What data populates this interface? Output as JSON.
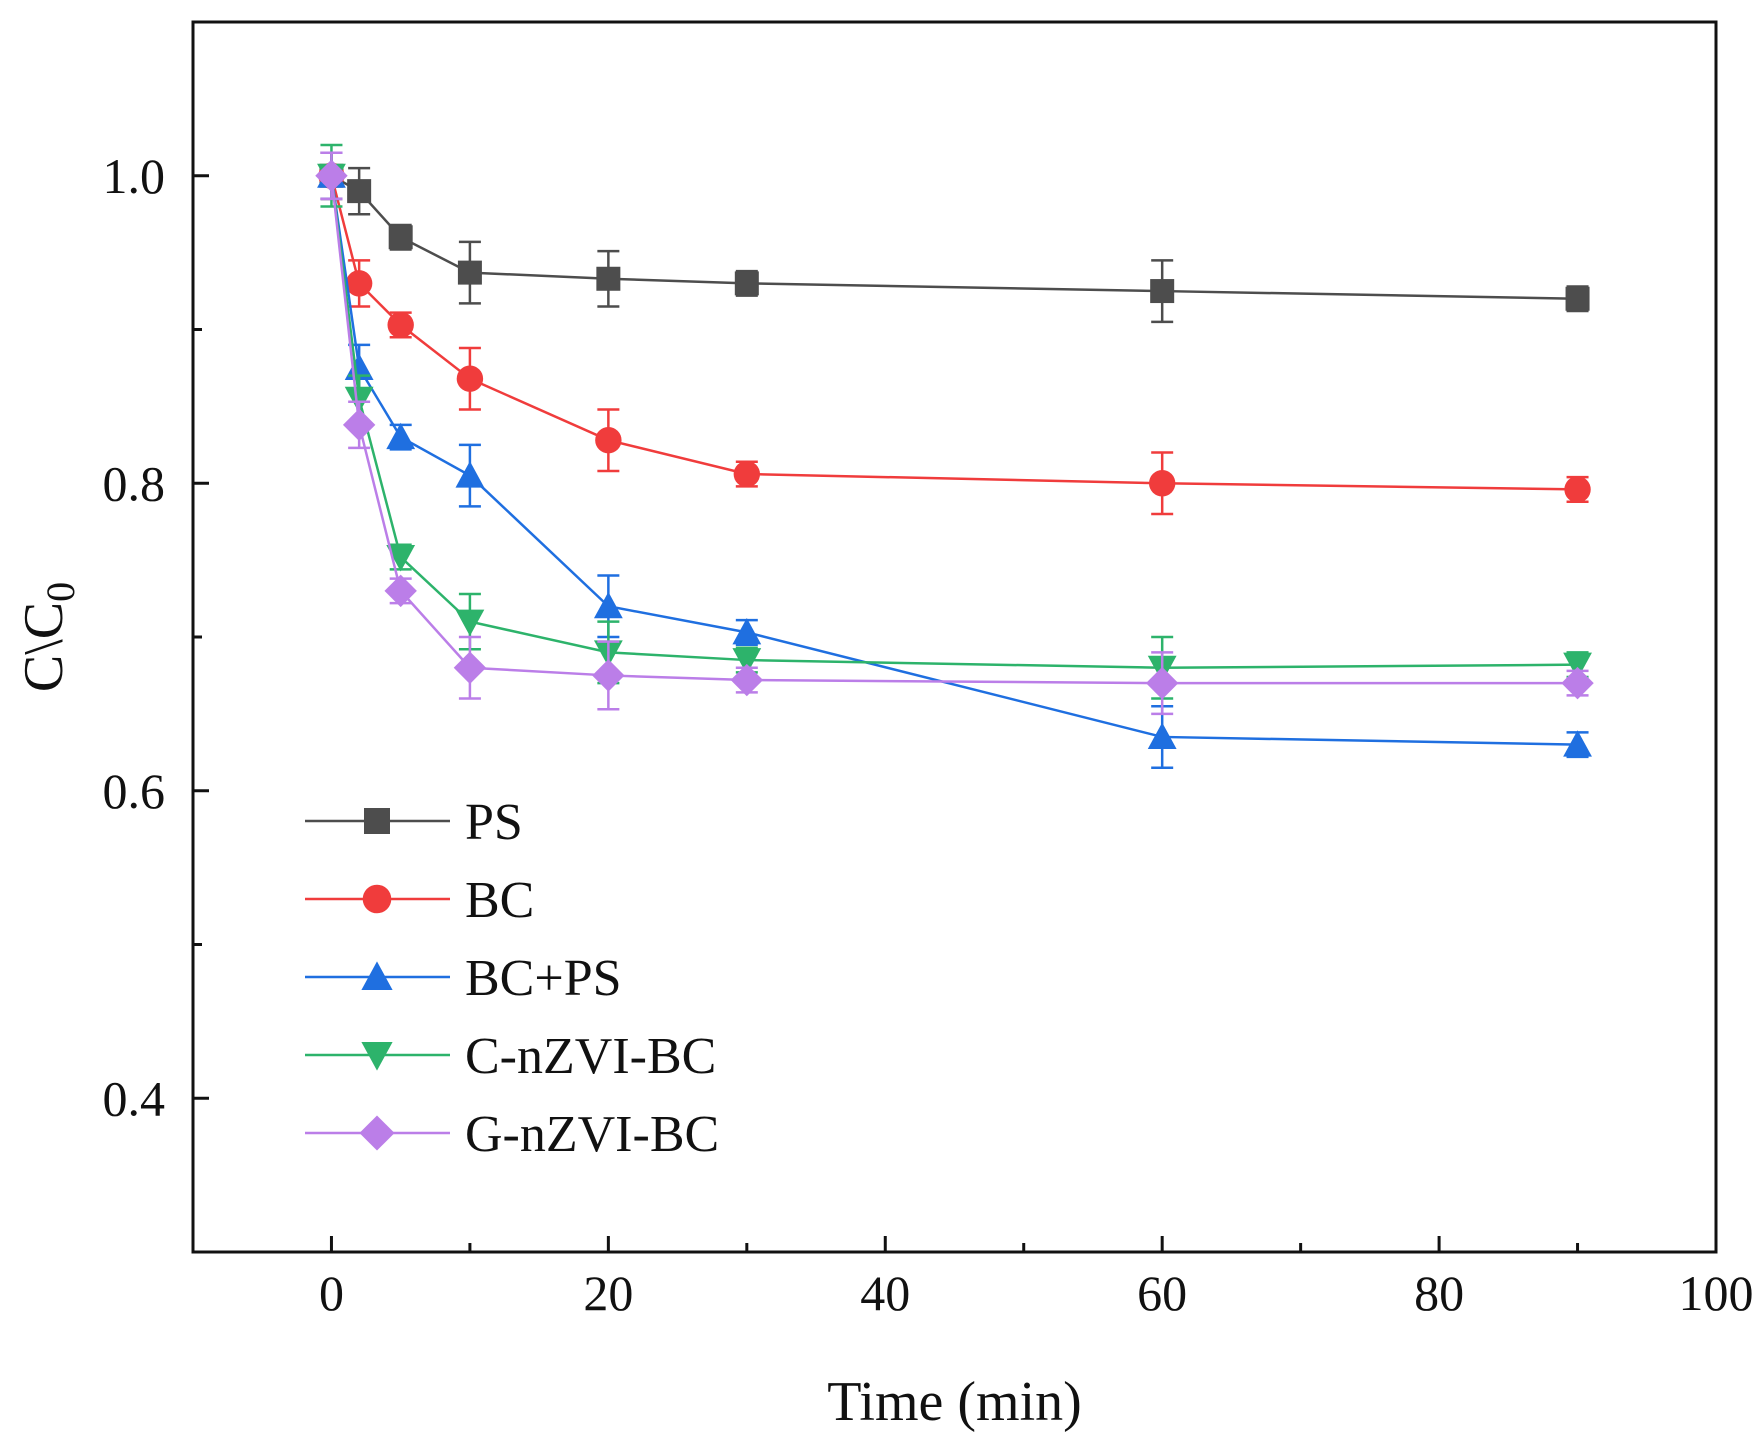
{
  "chart_data": {
    "type": "line",
    "title": "",
    "xlabel": "Time (min)",
    "ylabel": "C\\C",
    "ylabel_subscript": "0",
    "xlim": [
      -10,
      100
    ],
    "ylim": [
      0.3,
      1.1
    ],
    "x_ticks": [
      0,
      20,
      40,
      60,
      80,
      100
    ],
    "x_tick_labels": [
      "0",
      "20",
      "40",
      "60",
      "80",
      "100"
    ],
    "y_ticks": [
      0.4,
      0.6,
      0.8,
      1.0
    ],
    "y_tick_labels": [
      "0.4",
      "0.6",
      "0.8",
      "1.0"
    ],
    "grid": false,
    "legend_position": "bottom-left",
    "x": [
      0,
      2,
      5,
      10,
      20,
      30,
      60,
      90
    ],
    "series": [
      {
        "name": "PS",
        "color": "#4d4d4d",
        "marker": "square",
        "values": [
          1.0,
          0.99,
          0.96,
          0.937,
          0.933,
          0.93,
          0.925,
          0.92
        ],
        "errors": [
          0.015,
          0.015,
          0.008,
          0.02,
          0.018,
          0.008,
          0.02,
          0.008
        ]
      },
      {
        "name": "BC",
        "color": "#f03c3c",
        "marker": "circle",
        "values": [
          1.0,
          0.93,
          0.903,
          0.868,
          0.828,
          0.806,
          0.8,
          0.796
        ],
        "errors": [
          0.015,
          0.015,
          0.008,
          0.02,
          0.02,
          0.008,
          0.02,
          0.008
        ]
      },
      {
        "name": "BC+PS",
        "color": "#1f6fe0",
        "marker": "triangle-up",
        "values": [
          1.0,
          0.875,
          0.83,
          0.805,
          0.72,
          0.703,
          0.635,
          0.63
        ],
        "errors": [
          0.015,
          0.015,
          0.008,
          0.02,
          0.02,
          0.008,
          0.02,
          0.008
        ]
      },
      {
        "name": "C-nZVI-BC",
        "color": "#2db36b",
        "marker": "triangle-down",
        "values": [
          1.0,
          0.855,
          0.752,
          0.71,
          0.69,
          0.685,
          0.68,
          0.682
        ],
        "errors": [
          0.02,
          0.015,
          0.008,
          0.018,
          0.02,
          0.008,
          0.02,
          0.008
        ]
      },
      {
        "name": "G-nZVI-BC",
        "color": "#bb7ee8",
        "marker": "diamond",
        "values": [
          1.0,
          0.838,
          0.73,
          0.68,
          0.675,
          0.672,
          0.67,
          0.67
        ],
        "errors": [
          0.015,
          0.015,
          0.008,
          0.02,
          0.022,
          0.008,
          0.02,
          0.008
        ]
      }
    ]
  }
}
